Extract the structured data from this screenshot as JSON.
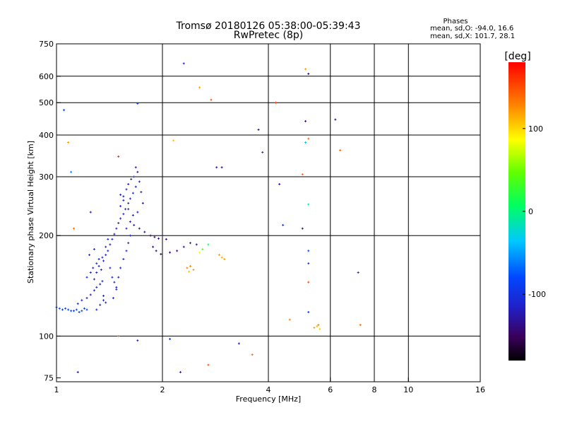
{
  "chart_data": {
    "type": "scatter",
    "title": "Tromsø 20180126 05:38:00-05:39:43",
    "subtitle": "RwPretec (8p)",
    "phase_label": "Phases",
    "stats_o": "mean, sd,O: -94.0, 16.6",
    "stats_x": "mean, sd,X: 101.7, 28.1",
    "xlabel": "Frequency [MHz]",
    "ylabel": "Stationary phase Virtual Height [km]",
    "x_scale": "log",
    "y_scale": "log",
    "xlim": [
      1,
      16
    ],
    "ylim": [
      73,
      750
    ],
    "x_ticks": [
      {
        "value": 1,
        "label": "1"
      },
      {
        "value": 2,
        "label": "2"
      },
      {
        "value": 4,
        "label": "4"
      },
      {
        "value": 6,
        "label": "6"
      },
      {
        "value": 8,
        "label": "8"
      },
      {
        "value": 10,
        "label": "10"
      },
      {
        "value": 16,
        "label": "16"
      }
    ],
    "y_ticks": [
      {
        "value": 75,
        "label": "75"
      },
      {
        "value": 100,
        "label": "100"
      },
      {
        "value": 200,
        "label": "200"
      },
      {
        "value": 300,
        "label": "300"
      },
      {
        "value": 400,
        "label": "400"
      },
      {
        "value": 500,
        "label": "500"
      },
      {
        "value": 600,
        "label": "600"
      },
      {
        "value": 750,
        "label": "750"
      }
    ],
    "x_grid": [
      2,
      4,
      6,
      8,
      10
    ],
    "y_grid": [
      100,
      200,
      300,
      400,
      500,
      600
    ],
    "grid": true,
    "colorbar": {
      "label": "[deg]",
      "range": [
        -180,
        180
      ],
      "ticks": [
        {
          "value": 100,
          "label": "100"
        },
        {
          "value": 0,
          "label": "0"
        },
        {
          "value": -100,
          "label": "-100"
        }
      ]
    },
    "points": [
      [
        1.0,
        122,
        -85
      ],
      [
        1.02,
        121,
        -88
      ],
      [
        1.04,
        120,
        -86
      ],
      [
        1.06,
        121,
        -87
      ],
      [
        1.08,
        120,
        -84
      ],
      [
        1.1,
        119,
        -85
      ],
      [
        1.12,
        119,
        -88
      ],
      [
        1.14,
        120,
        -86
      ],
      [
        1.16,
        118,
        -87
      ],
      [
        1.18,
        119,
        -85
      ],
      [
        1.2,
        121,
        -90
      ],
      [
        1.22,
        120,
        -88
      ],
      [
        1.15,
        125,
        -105
      ],
      [
        1.18,
        128,
        -110
      ],
      [
        1.22,
        130,
        -108
      ],
      [
        1.25,
        133,
        -112
      ],
      [
        1.28,
        137,
        -110
      ],
      [
        1.3,
        140,
        -107
      ],
      [
        1.33,
        143,
        -112
      ],
      [
        1.35,
        146,
        -110
      ],
      [
        1.22,
        150,
        -108
      ],
      [
        1.25,
        155,
        -110
      ],
      [
        1.27,
        160,
        -112
      ],
      [
        1.3,
        165,
        -108
      ],
      [
        1.32,
        170,
        -110
      ],
      [
        1.24,
        175,
        -112
      ],
      [
        1.28,
        182,
        -108
      ],
      [
        1.34,
        158,
        -110
      ],
      [
        1.36,
        168,
        -112
      ],
      [
        1.38,
        175,
        -108
      ],
      [
        1.4,
        180,
        -110
      ],
      [
        1.42,
        188,
        -112
      ],
      [
        1.44,
        195,
        -108
      ],
      [
        1.46,
        202,
        -110
      ],
      [
        1.48,
        210,
        -112
      ],
      [
        1.5,
        218,
        -108
      ],
      [
        1.52,
        225,
        -110
      ],
      [
        1.55,
        232,
        -112
      ],
      [
        1.57,
        240,
        -108
      ],
      [
        1.6,
        250,
        -110
      ],
      [
        1.62,
        258,
        -112
      ],
      [
        1.65,
        268,
        -108
      ],
      [
        1.68,
        280,
        -110
      ],
      [
        1.45,
        130,
        -112
      ],
      [
        1.48,
        140,
        -110
      ],
      [
        1.5,
        150,
        -108
      ],
      [
        1.52,
        160,
        -112
      ],
      [
        1.55,
        170,
        -110
      ],
      [
        1.58,
        180,
        -108
      ],
      [
        1.6,
        190,
        -112
      ],
      [
        1.62,
        200,
        -110
      ],
      [
        1.58,
        210,
        -115
      ],
      [
        1.62,
        220,
        -120
      ],
      [
        1.65,
        230,
        -118
      ],
      [
        1.6,
        240,
        -112
      ],
      [
        1.55,
        255,
        -110
      ],
      [
        1.52,
        265,
        -108
      ],
      [
        1.66,
        300,
        -120
      ],
      [
        1.7,
        310,
        -125
      ],
      [
        1.68,
        320,
        -118
      ],
      [
        1.72,
        290,
        -120
      ],
      [
        1.74,
        270,
        -118
      ],
      [
        1.76,
        250,
        -122
      ],
      [
        1.7,
        235,
        -120
      ],
      [
        1.66,
        215,
        -118
      ],
      [
        1.72,
        210,
        -130
      ],
      [
        1.78,
        205,
        -135
      ],
      [
        1.85,
        200,
        -140
      ],
      [
        1.9,
        198,
        -138
      ],
      [
        1.95,
        196,
        -135
      ],
      [
        2.0,
        200,
        -140
      ],
      [
        2.05,
        195,
        -142
      ],
      [
        1.88,
        185,
        -140
      ],
      [
        1.92,
        180,
        -138
      ],
      [
        1.98,
        176,
        -142
      ],
      [
        2.1,
        178,
        -140
      ],
      [
        2.2,
        180,
        -138
      ],
      [
        2.3,
        185,
        -130
      ],
      [
        2.4,
        190,
        -125
      ],
      [
        2.5,
        188,
        -130
      ],
      [
        1.28,
        148,
        -110
      ],
      [
        1.3,
        155,
        -112
      ],
      [
        1.32,
        162,
        -108
      ],
      [
        1.35,
        172,
        -110
      ],
      [
        1.38,
        185,
        -112
      ],
      [
        1.4,
        195,
        -108
      ],
      [
        1.42,
        160,
        -110
      ],
      [
        1.44,
        150,
        -112
      ],
      [
        1.46,
        145,
        -108
      ],
      [
        1.48,
        138,
        -110
      ],
      [
        1.36,
        132,
        -112
      ],
      [
        1.38,
        126,
        -108
      ],
      [
        1.52,
        245,
        -110
      ],
      [
        1.55,
        262,
        -115
      ],
      [
        1.58,
        275,
        -112
      ],
      [
        1.6,
        285,
        -110
      ],
      [
        1.63,
        295,
        -108
      ],
      [
        1.3,
        120,
        -105
      ],
      [
        1.33,
        124,
        -108
      ],
      [
        1.36,
        128,
        -110
      ],
      [
        2.35,
        160,
        130
      ],
      [
        2.4,
        162,
        125
      ],
      [
        2.45,
        158,
        120
      ],
      [
        2.38,
        156,
        110
      ],
      [
        2.9,
        175,
        120
      ],
      [
        2.95,
        172,
        115
      ],
      [
        3.0,
        170,
        118
      ],
      [
        2.55,
        178,
        80
      ],
      [
        2.6,
        182,
        40
      ],
      [
        2.7,
        188,
        10
      ],
      [
        5.4,
        106,
        120
      ],
      [
        5.5,
        107,
        110
      ],
      [
        5.6,
        105,
        100
      ],
      [
        5.55,
        108,
        130
      ],
      [
        1.05,
        475,
        -85
      ],
      [
        1.08,
        380,
        120
      ],
      [
        1.1,
        310,
        -60
      ],
      [
        1.12,
        210,
        140
      ],
      [
        1.25,
        235,
        -120
      ],
      [
        1.5,
        345,
        170
      ],
      [
        1.5,
        100,
        140
      ],
      [
        1.7,
        497,
        -80
      ],
      [
        1.7,
        97,
        -120
      ],
      [
        2.1,
        98,
        -100
      ],
      [
        2.15,
        385,
        110
      ],
      [
        2.3,
        655,
        -110
      ],
      [
        2.55,
        555,
        120
      ],
      [
        2.75,
        510,
        150
      ],
      [
        2.85,
        320,
        -130
      ],
      [
        2.95,
        320,
        -140
      ],
      [
        3.3,
        95,
        -120
      ],
      [
        3.6,
        88,
        140
      ],
      [
        3.75,
        415,
        -140
      ],
      [
        3.85,
        355,
        -100
      ],
      [
        4.2,
        500,
        160
      ],
      [
        4.3,
        285,
        -120
      ],
      [
        4.4,
        215,
        -100
      ],
      [
        4.6,
        112,
        130
      ],
      [
        5.0,
        210,
        -140
      ],
      [
        5.0,
        305,
        140
      ],
      [
        5.1,
        630,
        120
      ],
      [
        5.2,
        610,
        -150
      ],
      [
        5.1,
        440,
        -140
      ],
      [
        5.1,
        380,
        -30
      ],
      [
        5.2,
        390,
        140
      ],
      [
        5.2,
        248,
        -20
      ],
      [
        5.2,
        180,
        -80
      ],
      [
        5.2,
        165,
        -100
      ],
      [
        5.2,
        145,
        150
      ],
      [
        5.2,
        118,
        -90
      ],
      [
        6.2,
        445,
        -140
      ],
      [
        6.4,
        360,
        140
      ],
      [
        7.2,
        155,
        -100
      ],
      [
        7.3,
        108,
        140
      ],
      [
        1.15,
        78,
        -130
      ],
      [
        2.25,
        78,
        -120
      ],
      [
        2.7,
        82,
        150
      ]
    ]
  }
}
